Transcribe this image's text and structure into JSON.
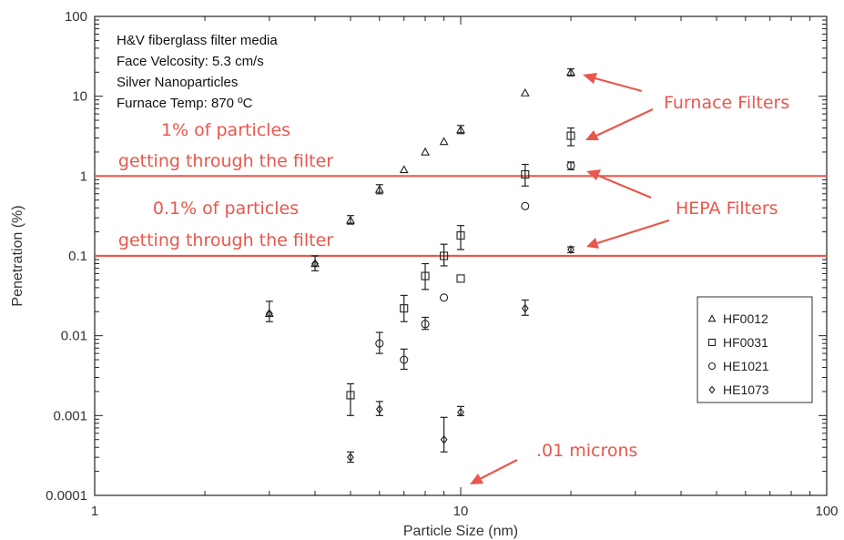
{
  "chart_data": {
    "type": "scatter",
    "x_scale": "log",
    "y_scale": "log",
    "xlim": [
      1,
      100
    ],
    "ylim": [
      0.0001,
      100
    ],
    "xlabel": "Particle Size (nm)",
    "ylabel": "Penetration (%)",
    "x_ticks": [
      "1",
      "10",
      "100"
    ],
    "y_ticks": [
      "0.0001",
      "0.001",
      "0.01",
      "0.1",
      "1",
      "10",
      "100"
    ],
    "grid": false,
    "legend_position": "right",
    "info_lines": [
      "H&V fiberglass filter media",
      "Face Velcosity: 5.3 cm/s",
      "Silver Nanoparticles",
      "Furnace Temp: 870 ºC"
    ],
    "series": [
      {
        "name": "HF0012",
        "marker": "triangle",
        "points": [
          {
            "x": 3,
            "y": 0.019,
            "err": [
              0.015,
              0.027
            ]
          },
          {
            "x": 4,
            "y": 0.08,
            "err": [
              0.065,
              0.1
            ]
          },
          {
            "x": 5,
            "y": 0.28,
            "err": [
              0.25,
              0.32
            ]
          },
          {
            "x": 6,
            "y": 0.68,
            "err": [
              0.6,
              0.78
            ]
          },
          {
            "x": 7,
            "y": 1.2
          },
          {
            "x": 8,
            "y": 2.0
          },
          {
            "x": 9,
            "y": 2.7
          },
          {
            "x": 10,
            "y": 3.8,
            "err": [
              3.4,
              4.3
            ]
          },
          {
            "x": 15,
            "y": 11
          },
          {
            "x": 20,
            "y": 20,
            "err": [
              18,
              22
            ]
          }
        ]
      },
      {
        "name": "HF0031",
        "marker": "square",
        "points": [
          {
            "x": 5,
            "y": 0.0018,
            "err": [
              0.001,
              0.0025
            ]
          },
          {
            "x": 7,
            "y": 0.022,
            "err": [
              0.015,
              0.032
            ]
          },
          {
            "x": 8,
            "y": 0.056,
            "err": [
              0.038,
              0.08
            ]
          },
          {
            "x": 9,
            "y": 0.1,
            "err": [
              0.075,
              0.14
            ]
          },
          {
            "x": 10,
            "y": 0.18,
            "err": [
              0.12,
              0.24
            ]
          },
          {
            "x": 10,
            "y": 0.052
          },
          {
            "x": 15,
            "y": 1.05,
            "err": [
              0.75,
              1.4
            ]
          },
          {
            "x": 20,
            "y": 3.2,
            "err": [
              2.4,
              4.0
            ]
          }
        ]
      },
      {
        "name": "HE1021",
        "marker": "circle",
        "points": [
          {
            "x": 6,
            "y": 0.008,
            "err": [
              0.006,
              0.011
            ]
          },
          {
            "x": 7,
            "y": 0.005,
            "err": [
              0.0038,
              0.0068
            ]
          },
          {
            "x": 8,
            "y": 0.014,
            "err": [
              0.012,
              0.017
            ]
          },
          {
            "x": 9,
            "y": 0.03
          },
          {
            "x": 15,
            "y": 0.42
          },
          {
            "x": 20,
            "y": 1.35,
            "err": [
              1.2,
              1.5
            ]
          }
        ]
      },
      {
        "name": "HE1073",
        "marker": "diamond",
        "points": [
          {
            "x": 3,
            "y": 0.019
          },
          {
            "x": 4,
            "y": 0.08
          },
          {
            "x": 5,
            "y": 0.0003,
            "err": [
              0.00026,
              0.00035
            ]
          },
          {
            "x": 6,
            "y": 0.0012,
            "err": [
              0.001,
              0.0015
            ]
          },
          {
            "x": 9,
            "y": 0.0005,
            "err": [
              0.00035,
              0.00095
            ]
          },
          {
            "x": 10,
            "y": 0.0011,
            "err": [
              0.001,
              0.0013
            ]
          },
          {
            "x": 15,
            "y": 0.022,
            "err": [
              0.018,
              0.028
            ]
          },
          {
            "x": 20,
            "y": 0.12,
            "err": [
              0.11,
              0.13
            ]
          }
        ]
      }
    ],
    "reference_lines": [
      {
        "y": 1,
        "color": "#e8574c"
      },
      {
        "y": 0.1,
        "color": "#e8574c"
      }
    ],
    "annotations": [
      {
        "text": "1% of particles",
        "color": "#e8574c"
      },
      {
        "text": "getting through the filter",
        "color": "#e8574c"
      },
      {
        "text": "0.1% of particles",
        "color": "#e8574c"
      },
      {
        "text": "getting through the filter",
        "color": "#e8574c"
      },
      {
        "text": "Furnace Filters",
        "color": "#e8574c"
      },
      {
        "text": "HEPA Filters",
        "color": "#e8574c"
      },
      {
        "text": ".01 microns",
        "color": "#e8574c"
      }
    ]
  }
}
